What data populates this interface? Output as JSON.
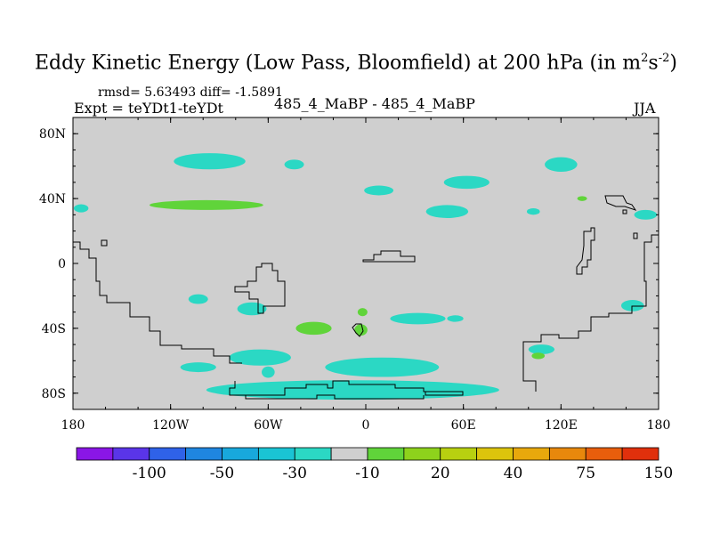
{
  "title_main": "Eddy Kinetic Energy (Low Pass, Bloomfield) at 200 hPa (in m",
  "title_sup1": "2",
  "title_mid": "s",
  "title_sup2": "-2",
  "title_end": ")",
  "stats": "rmsd= 5.63493 diff= -1.5891",
  "expt": "Expt = teYDt1-teYDt",
  "case": "485_4_MaBP - 485_4_MaBP",
  "season": "JJA",
  "chart_data": {
    "type": "heatmap",
    "title": "Eddy Kinetic Energy (Low Pass, Bloomfield) at 200 hPa (in m2s-2)",
    "xlabel": "",
    "ylabel": "",
    "xlim": [
      -180,
      180
    ],
    "ylim": [
      -90,
      90
    ],
    "x_ticks": [
      -180,
      -120,
      -60,
      0,
      60,
      120,
      180
    ],
    "x_tick_labels": [
      "180",
      "120W",
      "60W",
      "0",
      "60E",
      "120E",
      "180"
    ],
    "y_ticks": [
      80,
      40,
      0,
      -40,
      -80
    ],
    "y_tick_labels": [
      "80N",
      "40N",
      "0",
      "40S",
      "80S"
    ],
    "colorbar_labels": [
      "-100",
      "-50",
      "-30",
      "-10",
      "20",
      "40",
      "75",
      "150"
    ],
    "colorbar_colors": [
      "#8a16e6",
      "#5a35e8",
      "#2f62e8",
      "#1f86e0",
      "#18a8dc",
      "#1ac4d4",
      "#2bd8c4",
      "#cfcfcf",
      "#60d43a",
      "#8ed21c",
      "#b8d010",
      "#dcc40c",
      "#e8a80c",
      "#e8880c",
      "#e85e0c",
      "#e0300c"
    ],
    "background_value_color": "#cfcfcf",
    "anomalies": [
      {
        "lon": -96,
        "lat": 63,
        "w": 44,
        "h": 10,
        "color": "#2bd8c4"
      },
      {
        "lon": -44,
        "lat": 61,
        "w": 12,
        "h": 6,
        "color": "#2bd8c4"
      },
      {
        "lon": 120,
        "lat": 61,
        "w": 20,
        "h": 9,
        "color": "#2bd8c4"
      },
      {
        "lon": 62,
        "lat": 50,
        "w": 28,
        "h": 8,
        "color": "#2bd8c4"
      },
      {
        "lon": 8,
        "lat": 45,
        "w": 18,
        "h": 6,
        "color": "#2bd8c4"
      },
      {
        "lon": -98,
        "lat": 36,
        "w": 70,
        "h": 6,
        "color": "#60d43a"
      },
      {
        "lon": 50,
        "lat": 32,
        "w": 26,
        "h": 8,
        "color": "#2bd8c4"
      },
      {
        "lon": 172,
        "lat": 30,
        "w": 14,
        "h": 6,
        "color": "#2bd8c4"
      },
      {
        "lon": -175,
        "lat": 34,
        "w": 9,
        "h": 5,
        "color": "#2bd8c4"
      },
      {
        "lon": 103,
        "lat": 32,
        "w": 8,
        "h": 4,
        "color": "#2bd8c4"
      },
      {
        "lon": 133,
        "lat": 40,
        "w": 6,
        "h": 3,
        "color": "#60d43a"
      },
      {
        "lon": -103,
        "lat": -22,
        "w": 12,
        "h": 6,
        "color": "#2bd8c4"
      },
      {
        "lon": -70,
        "lat": -28,
        "w": 18,
        "h": 8,
        "color": "#2bd8c4"
      },
      {
        "lon": -2,
        "lat": -30,
        "w": 6,
        "h": 5,
        "color": "#60d43a"
      },
      {
        "lon": 32,
        "lat": -34,
        "w": 34,
        "h": 7,
        "color": "#2bd8c4"
      },
      {
        "lon": 55,
        "lat": -34,
        "w": 10,
        "h": 4,
        "color": "#2bd8c4"
      },
      {
        "lon": -32,
        "lat": -40,
        "w": 22,
        "h": 8,
        "color": "#60d43a"
      },
      {
        "lon": -3,
        "lat": -41,
        "w": 8,
        "h": 7,
        "color": "#60d43a"
      },
      {
        "lon": -103,
        "lat": -64,
        "w": 22,
        "h": 6,
        "color": "#2bd8c4"
      },
      {
        "lon": -65,
        "lat": -58,
        "w": 38,
        "h": 10,
        "color": "#2bd8c4"
      },
      {
        "lon": -60,
        "lat": -67,
        "w": 8,
        "h": 7,
        "color": "#2bd8c4"
      },
      {
        "lon": 10,
        "lat": -64,
        "w": 70,
        "h": 12,
        "color": "#2bd8c4"
      },
      {
        "lon": -8,
        "lat": -78,
        "w": 180,
        "h": 12,
        "color": "#2bd8c4"
      },
      {
        "lon": 108,
        "lat": -53,
        "w": 16,
        "h": 6,
        "color": "#2bd8c4"
      },
      {
        "lon": 106,
        "lat": -57,
        "w": 8,
        "h": 4,
        "color": "#60d43a"
      },
      {
        "lon": 164,
        "lat": -26,
        "w": 14,
        "h": 7,
        "color": "#2bd8c4"
      }
    ]
  }
}
